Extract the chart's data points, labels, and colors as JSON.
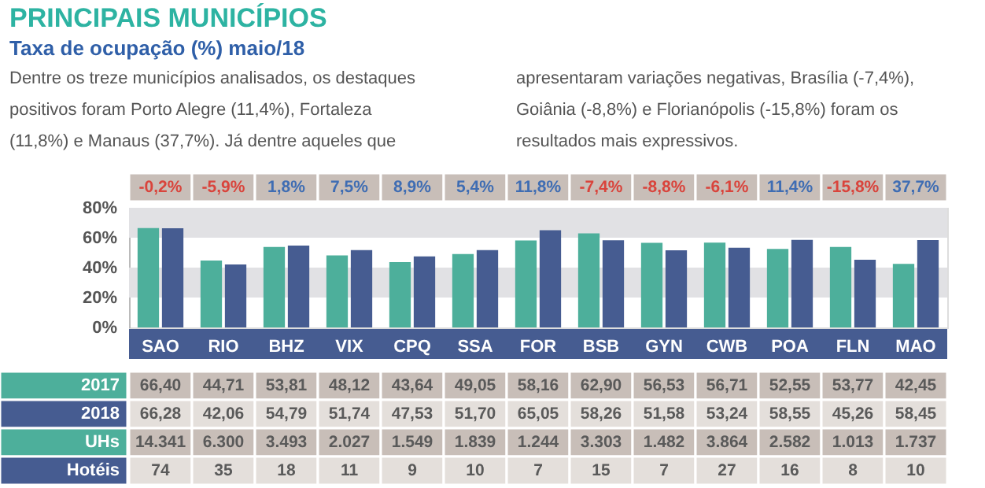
{
  "chart_data": {
    "type": "bar",
    "title": "PRINCIPAIS MUNICÍPIOS",
    "subtitle": "Taxa de ocupação (%) maio/18",
    "categories": [
      "SAO",
      "RIO",
      "BHZ",
      "VIX",
      "CPQ",
      "SSA",
      "FOR",
      "BSB",
      "GYN",
      "CWB",
      "POA",
      "FLN",
      "MAO"
    ],
    "series": [
      {
        "name": "2017",
        "color": "#4daf9b",
        "values": [
          66.4,
          44.71,
          53.81,
          48.12,
          43.64,
          49.05,
          58.16,
          62.9,
          56.53,
          56.71,
          52.55,
          53.77,
          42.45
        ],
        "value_labels": [
          "66,40",
          "44,71",
          "53,81",
          "48,12",
          "43,64",
          "49,05",
          "58,16",
          "62,90",
          "56,53",
          "56,71",
          "52,55",
          "53,77",
          "42,45"
        ]
      },
      {
        "name": "2018",
        "color": "#465c91",
        "values": [
          66.28,
          42.06,
          54.79,
          51.74,
          47.53,
          51.7,
          65.05,
          58.26,
          51.58,
          53.24,
          58.55,
          45.26,
          58.45
        ],
        "value_labels": [
          "66,28",
          "42,06",
          "54,79",
          "51,74",
          "47,53",
          "51,70",
          "65,05",
          "58,26",
          "51,58",
          "53,24",
          "58,55",
          "45,26",
          "58,45"
        ]
      }
    ],
    "ylim": [
      0,
      80
    ],
    "yticks": [
      {
        "value": 0,
        "label": "0%"
      },
      {
        "value": 20,
        "label": "20%"
      },
      {
        "value": 40,
        "label": "40%"
      },
      {
        "value": 60,
        "label": "60%"
      },
      {
        "value": 80,
        "label": "80%"
      }
    ],
    "bands": [
      {
        "axis": "y",
        "from": 20,
        "to": 40,
        "color": "#e1e1e4"
      },
      {
        "axis": "y",
        "from": 60,
        "to": 80,
        "color": "#e1e1e4"
      }
    ],
    "legend": "bottom left",
    "annotations": [
      "Dentre os treze municípios analisados, os destaques",
      "positivos foram Porto Alegre (11,4%), Fortaleza",
      "(11,8%) e Manaus (37,7%). Já dentre aqueles que",
      "apresentaram variações negativas, Brasília (-7,4%),",
      "Goiânia (-8,8%) e Florianópolis (-15,8%) foram os",
      "resultados mais expressivos.",
      "-0,2%",
      "-5,9%",
      "1,8%",
      "7,5%",
      "8,9%",
      "5,4%",
      "11,8%",
      "-7,4%",
      "-8,8%",
      "-6,1%",
      "11,4%",
      "-15,8%",
      "37,7%",
      "UHs",
      "14.341",
      "6.300",
      "3.493",
      "2.027",
      "1.549",
      "1.839",
      "1.244",
      "3.303",
      "1.482",
      "3.864",
      "2.582",
      "1.013",
      "1.737",
      "Hotéis",
      "74",
      "35",
      "18",
      "11",
      "9",
      "10",
      "7",
      "15",
      "7",
      "27",
      "16",
      "8",
      "10"
    ]
  }
}
